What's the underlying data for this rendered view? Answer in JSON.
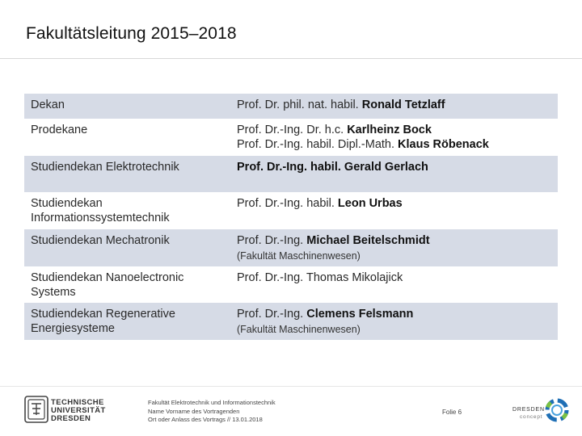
{
  "header": {
    "title": "Fakultätsleitung 2015–2018"
  },
  "rows": [
    {
      "role": "Dekan",
      "lines": [
        {
          "pre": "Prof. Dr. phil. nat. habil. ",
          "name": "Ronald Tetzlaff"
        }
      ],
      "note": "",
      "shade": true
    },
    {
      "role": "Prodekane",
      "lines": [
        {
          "pre": "Prof. Dr.-Ing. Dr. h.c. ",
          "name": "Karlheinz Bock"
        },
        {
          "pre": "Prof. Dr.-Ing. habil. Dipl.-Math. ",
          "name": "Klaus Röbenack"
        }
      ],
      "note": "",
      "shade": false
    },
    {
      "role": "Studiendekan Elektrotechnik",
      "lines": [
        {
          "pre": "",
          "name": "Prof. Dr.-Ing. habil. Gerald Gerlach"
        }
      ],
      "note": "",
      "shade": true
    },
    {
      "role": "Studiendekan Informationssystemtechnik",
      "lines": [
        {
          "pre": "Prof. Dr.-Ing. habil. ",
          "name": "Leon Urbas"
        }
      ],
      "note": "",
      "shade": false
    },
    {
      "role": "Studiendekan Mechatronik",
      "lines": [
        {
          "pre": "Prof. Dr.-Ing. ",
          "name": "Michael Beitelschmidt"
        }
      ],
      "note": "(Fakultät Maschinenwesen)",
      "shade": true
    },
    {
      "role": "Studiendekan Nanoelectronic Systems",
      "lines": [
        {
          "pre": "Prof. Dr.-Ing. Thomas Mikolajick",
          "name": ""
        }
      ],
      "note": "",
      "shade": false
    },
    {
      "role": "Studiendekan Regenerative Energiesysteme",
      "lines": [
        {
          "pre": "Prof. Dr.-Ing. ",
          "name": "Clemens Felsmann"
        }
      ],
      "note": "(Fakultät Maschinenwesen)",
      "shade": true
    }
  ],
  "footer": {
    "tu_logo": [
      "TECHNISCHE",
      "UNIVERSITÄT",
      "DRESDEN"
    ],
    "info": [
      "Fakultät Elektrotechnik und Informationstechnik",
      "Name Vorname des Vortragenden",
      "Ort oder Anlass des Vortrags // 13.01.2018"
    ],
    "folie": "Folie 6",
    "dc_logo": [
      "DRESDEN",
      "concept"
    ],
    "tu_logo_icon": "tu-dresden-emblem",
    "dc_logo_icon": "dresden-concept-ring",
    "shade_color": "#d6dbe6",
    "dc_colors": [
      "#1f6fb5",
      "#4aa3df",
      "#7ac143",
      "#2b8a3e"
    ]
  }
}
